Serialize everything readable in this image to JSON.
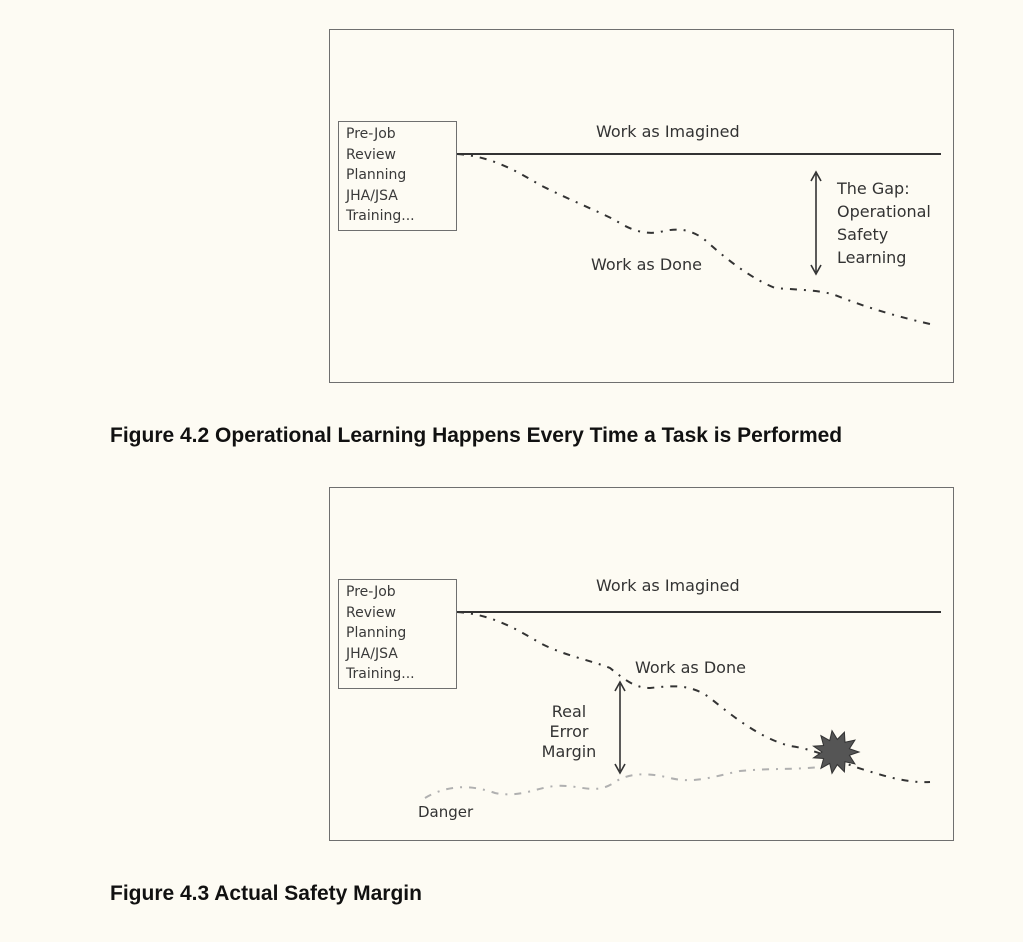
{
  "figure_1": {
    "prebox_lines": [
      "Pre-Job",
      "Review",
      "Planning",
      "JHA/JSA",
      "Training..."
    ],
    "imagined_label": "Work as Imagined",
    "done_label": "Work as Done",
    "gap_lines": [
      "The Gap:",
      "Operational",
      "Safety",
      "Learning"
    ],
    "caption": "Figure 4.2 Operational Learning Happens Every Time a Task is Performed"
  },
  "figure_2": {
    "prebox_lines": [
      "Pre-Job",
      "Review",
      "Planning",
      "JHA/JSA",
      "Training..."
    ],
    "imagined_label": "Work as Imagined",
    "done_label": "Work as Done",
    "margin_lines": [
      "Real",
      "Error",
      "Margin"
    ],
    "danger_label": "Danger",
    "caption": "Figure 4.3 Actual Safety Margin"
  },
  "colors": {
    "background": "#fdfbf3",
    "line": "#333333",
    "danger_line": "#b0b0b0",
    "burst": "#555555",
    "caption": "#111111"
  }
}
